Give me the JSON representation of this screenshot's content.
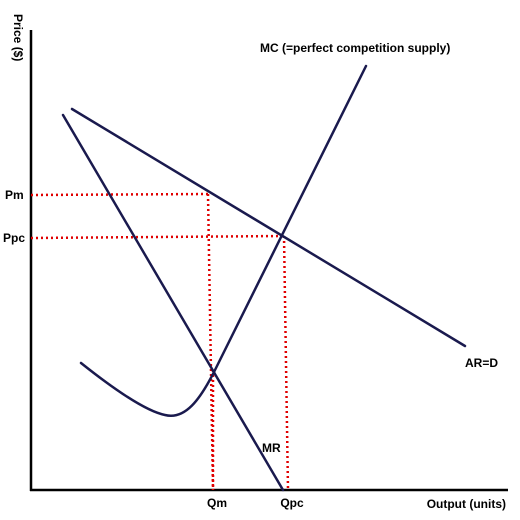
{
  "axes": {
    "y_label": "Price ($)",
    "x_label": "Output (units)"
  },
  "price_labels": {
    "pm": "Pm",
    "ppc": "Ppc"
  },
  "quantity_labels": {
    "qm": "Qm",
    "qpc": "Qpc"
  },
  "curves": {
    "mc": "MC  (=perfect competition supply)",
    "demand": "AR=D",
    "mr": "MR"
  },
  "colors": {
    "curve": "#1a1a4e",
    "guide": "#e00000",
    "axis": "#000000"
  }
}
